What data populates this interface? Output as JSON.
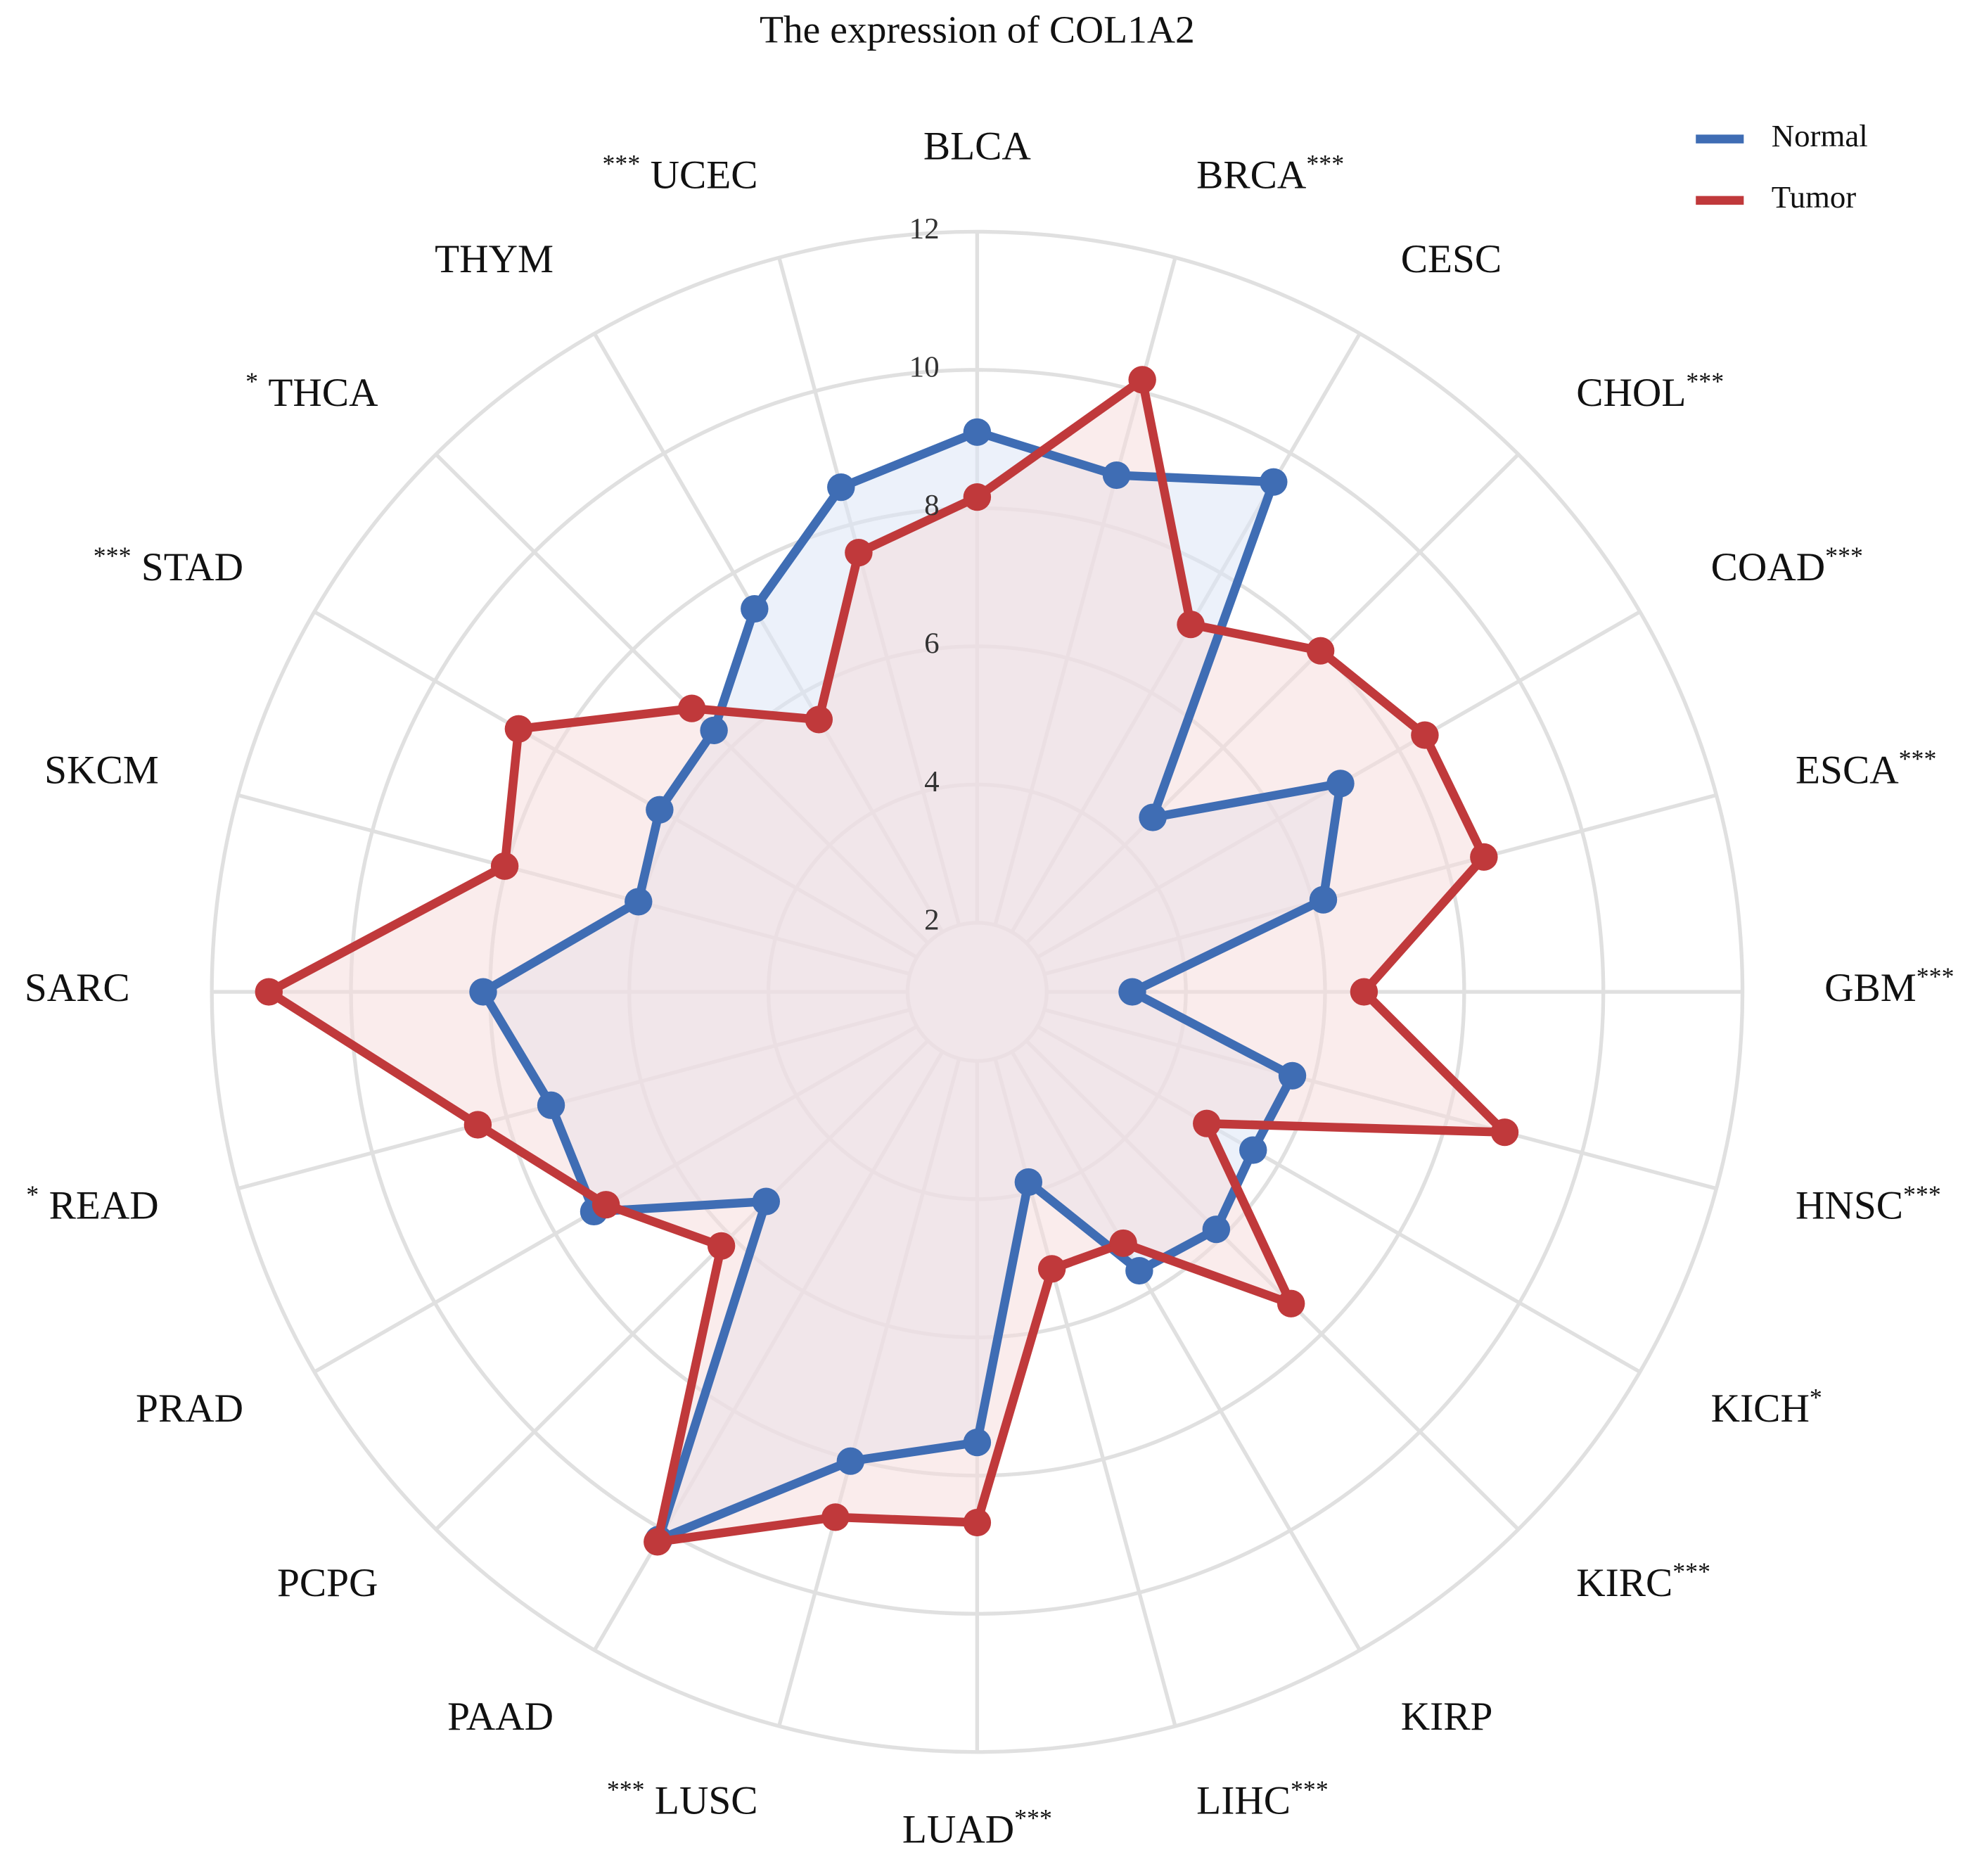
{
  "chart_data": {
    "type": "radar",
    "title": "The expression of COL1A2",
    "categories": [
      "BLCA",
      "BRCA",
      "CESC",
      "CHOL",
      "COAD",
      "ESCA",
      "GBM",
      "HNSC",
      "KICH",
      "KIRC",
      "KIRP",
      "LIHC",
      "LUAD",
      "LUSC",
      "PAAD",
      "PCPG",
      "PRAD",
      "READ",
      "SARC",
      "SKCM",
      "STAD",
      "THCA",
      "THYM",
      "UCEC"
    ],
    "significance": [
      null,
      "***",
      null,
      "***",
      "***",
      "***",
      "***",
      "***",
      "*",
      "***",
      null,
      "***",
      "***",
      "***",
      null,
      null,
      null,
      "*",
      null,
      null,
      "***",
      "*",
      null,
      "***"
    ],
    "series": [
      {
        "name": "Normal",
        "color": "#3f6db4",
        "fill": "#dde5f5",
        "values": [
          9.1,
          8.74,
          9.52,
          4.57,
          7.03,
          6.15,
          3.23,
          5.69,
          5.58,
          5.86,
          5.66,
          3.85,
          7.52,
          8.03,
          10.15,
          5.29,
          7.36,
          7.34,
          8.1,
          6.04,
          6.27,
          6.35,
          7.4,
          8.56
        ]
      },
      {
        "name": "Tumor",
        "color": "#c0393b",
        "fill": "#f6dcdc",
        "values": [
          8.16,
          10.17,
          7.14,
          7.98,
          8.43,
          8.54,
          6.56,
          8.85,
          4.81,
          7.38,
          5.2,
          5.15,
          8.68,
          8.87,
          10.19,
          6.2,
          7.16,
          8.43,
          11.18,
          8.03,
          8.61,
          6.8,
          5.55,
          7.58
        ]
      }
    ],
    "ylim": [
      1,
      12
    ],
    "yticks": [
      2,
      4,
      6,
      8,
      10,
      12
    ],
    "grid": true,
    "legend": "top-right"
  }
}
